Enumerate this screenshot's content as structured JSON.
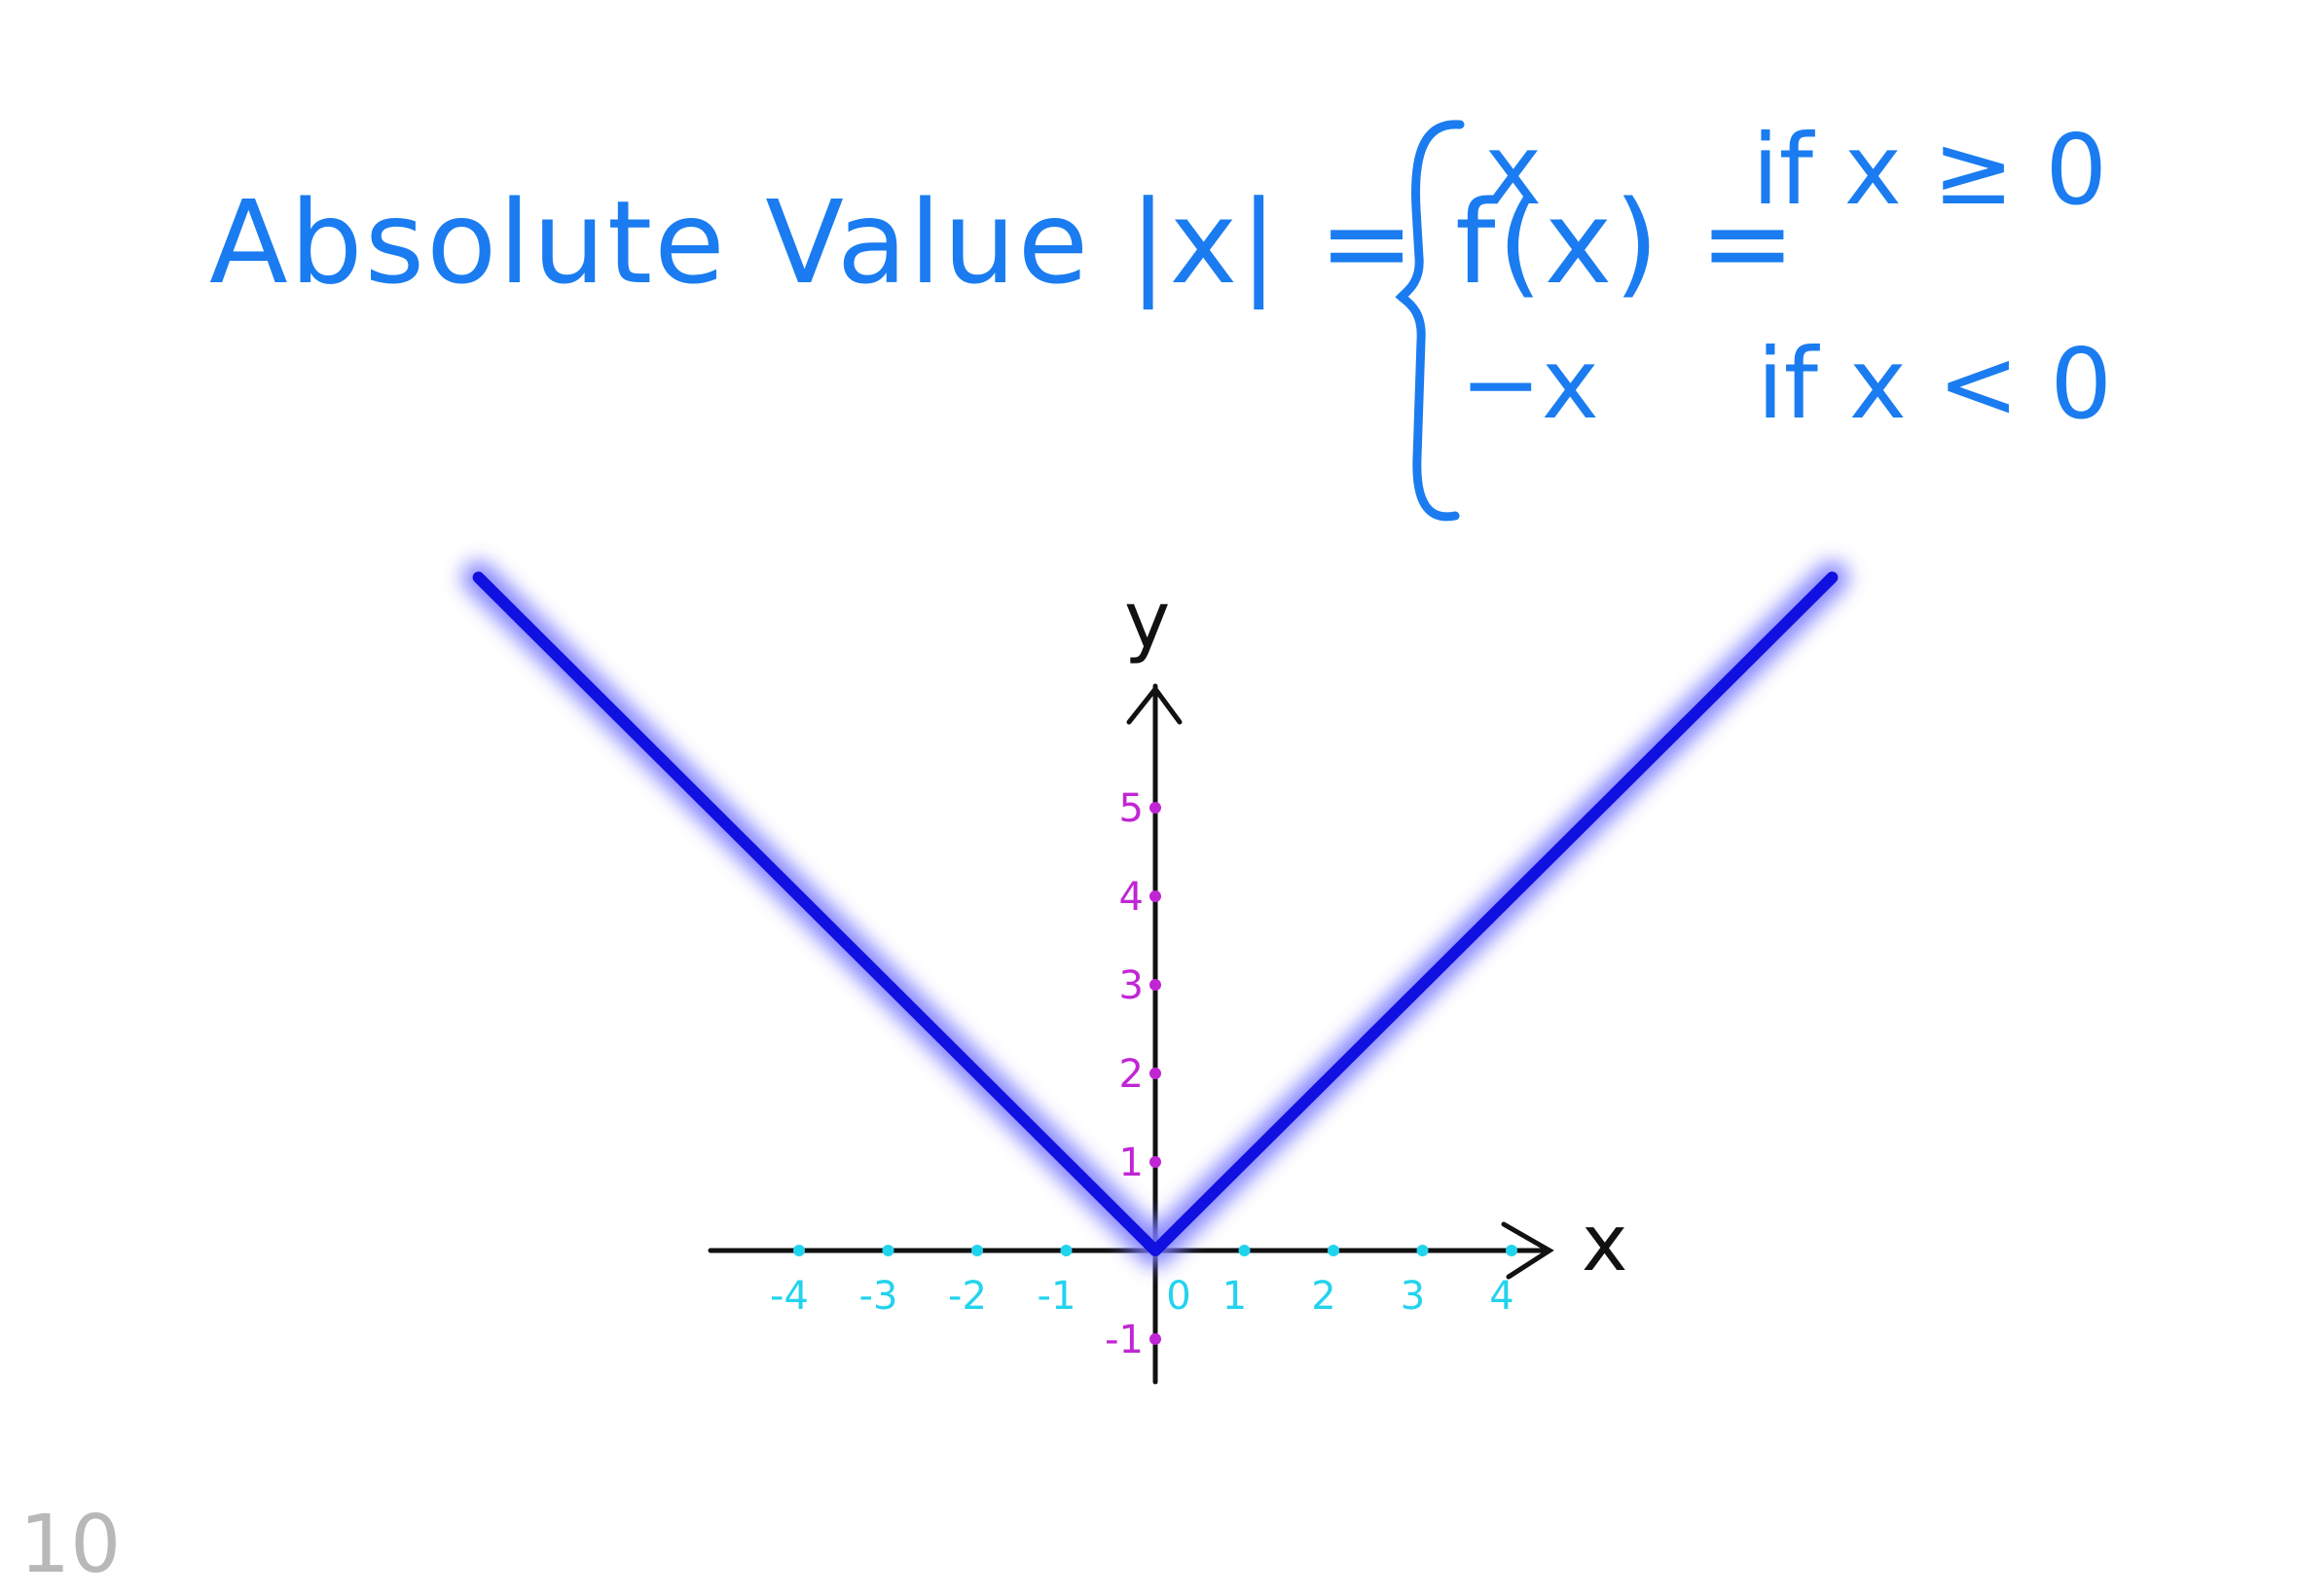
{
  "formula": {
    "lhs": "Absolute Value |x| = f(x) =",
    "cases": [
      {
        "expr": "x",
        "condition": "if x ≥ 0"
      },
      {
        "expr": "−x",
        "condition": "if x < 0"
      }
    ]
  },
  "colors": {
    "formula": "#1a7cf0",
    "graph_line": "#1010e0",
    "graph_glow": "#7a7aff",
    "x_ticks": "#22d3ee",
    "y_ticks": "#c026d3",
    "axes": "#111111"
  },
  "graph": {
    "x_axis_label": "x",
    "y_axis_label": "y",
    "x_ticks": [
      {
        "value": -4,
        "label": "-4"
      },
      {
        "value": -3,
        "label": "-3"
      },
      {
        "value": -2,
        "label": "-2"
      },
      {
        "value": -1,
        "label": "-1"
      },
      {
        "value": 0,
        "label": "0"
      },
      {
        "value": 1,
        "label": "1"
      },
      {
        "value": 2,
        "label": "2"
      },
      {
        "value": 3,
        "label": "3"
      },
      {
        "value": 4,
        "label": "4"
      }
    ],
    "y_ticks": [
      {
        "value": -1,
        "label": "-1"
      },
      {
        "value": 1,
        "label": "1"
      },
      {
        "value": 2,
        "label": "2"
      },
      {
        "value": 3,
        "label": "3"
      },
      {
        "value": 4,
        "label": "4"
      },
      {
        "value": 5,
        "label": "5"
      }
    ],
    "function_points": [
      {
        "x": -7.6,
        "y": 7.6
      },
      {
        "x": 0,
        "y": 0
      },
      {
        "x": 7.6,
        "y": 7.6
      }
    ]
  },
  "page_number": "10"
}
